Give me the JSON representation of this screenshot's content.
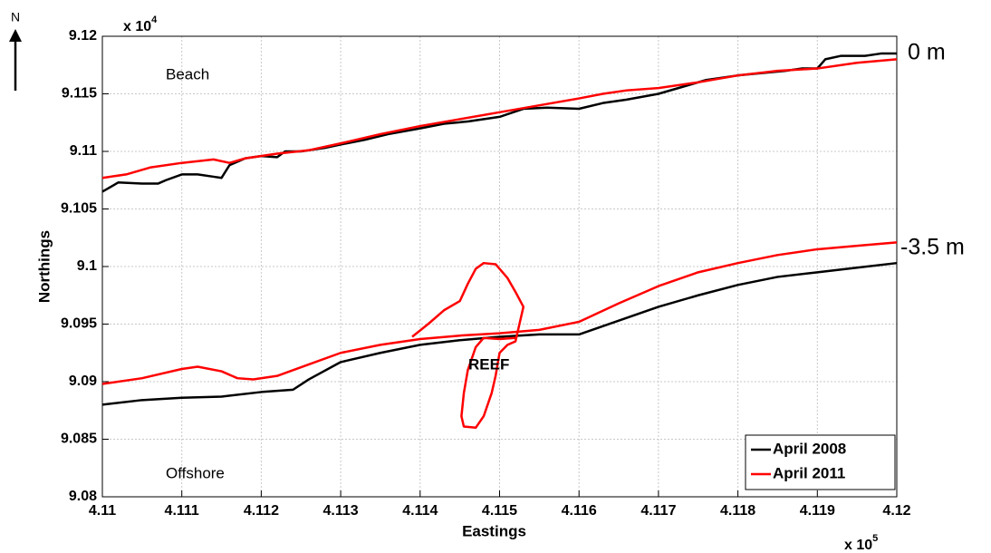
{
  "chart_data": {
    "type": "line",
    "xlabel": "Eastings",
    "ylabel": "Northings",
    "x_multiplier": {
      "base": "x 10",
      "exp": "5"
    },
    "y_multiplier": {
      "base": "x 10",
      "exp": "4"
    },
    "xlim": [
      4.11,
      4.12
    ],
    "ylim": [
      9.08,
      9.12
    ],
    "xticks": [
      4.11,
      4.111,
      4.112,
      4.113,
      4.114,
      4.115,
      4.116,
      4.117,
      4.118,
      4.119,
      4.12
    ],
    "yticks": [
      9.08,
      9.085,
      9.09,
      9.095,
      9.1,
      9.105,
      9.11,
      9.115,
      9.12
    ],
    "grid": true,
    "legend": "lower right",
    "annotations": {
      "north": "N",
      "beach": "Beach",
      "offshore": "Offshore",
      "reef": "REEF",
      "contour_0": "0 m",
      "contour_35": "-3.5 m"
    },
    "series": [
      {
        "name": "April 2008",
        "color": "#000000",
        "lines": [
          {
            "x": [
              4.11,
              4.1102,
              4.1105,
              4.1107,
              4.1108,
              4.111,
              4.1112,
              4.1114,
              4.1115,
              4.1116,
              4.1118,
              4.112,
              4.1122,
              4.1123,
              4.1125,
              4.1128,
              4.113,
              4.1133,
              4.1136,
              4.114,
              4.1143,
              4.1146,
              4.115,
              4.1153,
              4.1156,
              4.116,
              4.1163,
              4.1166,
              4.117,
              4.1173,
              4.1176,
              4.118,
              4.1183,
              4.1186,
              4.1188,
              4.119,
              4.1191,
              4.1193,
              4.1196,
              4.1198,
              4.12
            ],
            "values": [
              9.1065,
              9.1073,
              9.1072,
              9.1072,
              9.1075,
              9.108,
              9.108,
              9.1078,
              9.1077,
              9.1088,
              9.1094,
              9.1096,
              9.1095,
              9.11,
              9.11,
              9.1103,
              9.1106,
              9.111,
              9.1115,
              9.112,
              9.1124,
              9.1126,
              9.113,
              9.1137,
              9.1138,
              9.1137,
              9.1142,
              9.1145,
              9.115,
              9.1156,
              9.1162,
              9.1166,
              9.1168,
              9.117,
              9.1172,
              9.1172,
              9.118,
              9.1183,
              9.1183,
              9.1185,
              9.1185
            ]
          },
          {
            "x": [
              4.11,
              4.1105,
              4.111,
              4.1115,
              4.112,
              4.1124,
              4.1126,
              4.113,
              4.1135,
              4.114,
              4.1145,
              4.115,
              4.1155,
              4.116,
              4.1165,
              4.117,
              4.1175,
              4.118,
              4.1185,
              4.119,
              4.1195,
              4.12
            ],
            "values": [
              9.088,
              9.0884,
              9.0886,
              9.0887,
              9.0891,
              9.0893,
              9.0902,
              9.0917,
              9.0925,
              9.0932,
              9.0936,
              9.0939,
              9.0941,
              9.0941,
              9.0953,
              9.0965,
              9.0975,
              9.0984,
              9.0991,
              9.0995,
              9.0999,
              9.1003
            ]
          }
        ]
      },
      {
        "name": "April 2011",
        "color": "#ff0000",
        "lines": [
          {
            "x": [
              4.11,
              4.1103,
              4.1106,
              4.111,
              4.1114,
              4.1116,
              4.1118,
              4.1122,
              4.1126,
              4.113,
              4.1135,
              4.114,
              4.1145,
              4.115,
              4.1155,
              4.116,
              4.1163,
              4.1166,
              4.117,
              4.1175,
              4.118,
              4.1185,
              4.119,
              4.1195,
              4.12
            ],
            "values": [
              9.1077,
              9.108,
              9.1086,
              9.109,
              9.1093,
              9.109,
              9.1094,
              9.1098,
              9.1101,
              9.1107,
              9.1115,
              9.1122,
              9.1128,
              9.1134,
              9.114,
              9.1146,
              9.115,
              9.1153,
              9.1155,
              9.116,
              9.1166,
              9.117,
              9.1172,
              9.1177,
              9.118
            ]
          },
          {
            "x": [
              4.11,
              4.1105,
              4.111,
              4.1112,
              4.1115,
              4.1117,
              4.1119,
              4.1122,
              4.1126,
              4.113,
              4.1135,
              4.114,
              4.1145,
              4.115,
              4.1155,
              4.116,
              4.1165,
              4.117,
              4.1175,
              4.118,
              4.1185,
              4.119,
              4.1195,
              4.12
            ],
            "values": [
              9.0898,
              9.0903,
              9.0911,
              9.0913,
              9.0909,
              9.0903,
              9.0902,
              9.0905,
              9.0915,
              9.0925,
              9.0932,
              9.0937,
              9.094,
              9.0942,
              9.0945,
              9.0952,
              9.0968,
              9.0983,
              9.0995,
              9.1003,
              9.101,
              9.1015,
              9.1018,
              9.1021
            ]
          },
          {
            "x": [
              4.1139,
              4.1141,
              4.1143,
              4.1145,
              4.1146,
              4.1147,
              4.1148,
              4.11495,
              4.1151,
              4.1152,
              4.1153,
              4.11525,
              4.1152,
              4.1151,
              4.115,
              4.11495,
              4.1149,
              4.1148,
              4.1147,
              4.11455,
              4.11452,
              4.11455,
              4.1146,
              4.1147,
              4.1148,
              4.115,
              4.1152
            ],
            "values": [
              9.0939,
              9.095,
              9.0962,
              9.097,
              9.0985,
              9.0998,
              9.1003,
              9.1002,
              9.099,
              9.0978,
              9.0965,
              9.095,
              9.0935,
              9.0932,
              9.0925,
              9.0905,
              9.089,
              9.087,
              9.086,
              9.0861,
              9.087,
              9.089,
              9.091,
              9.093,
              9.0938,
              9.0937,
              9.0938
            ]
          }
        ]
      }
    ]
  }
}
